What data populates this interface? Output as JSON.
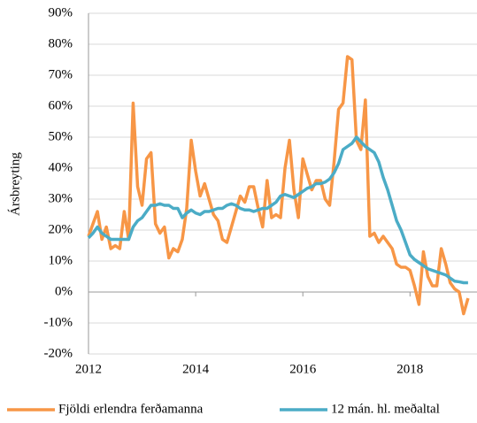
{
  "chart_data": {
    "type": "line",
    "ylabel": "Ársbreyting",
    "xlim": [
      2012,
      2019.25
    ],
    "xticks": [
      2012,
      2014,
      2016,
      2018
    ],
    "ylim": [
      -20,
      90
    ],
    "yticks": [
      {
        "value": -20,
        "label": "-20%"
      },
      {
        "value": -10,
        "label": "-10%"
      },
      {
        "value": 0,
        "label": "0%"
      },
      {
        "value": 10,
        "label": "10%"
      },
      {
        "value": 20,
        "label": "20%"
      },
      {
        "value": 30,
        "label": "30%"
      },
      {
        "value": 40,
        "label": "40%"
      },
      {
        "value": 50,
        "label": "50%"
      },
      {
        "value": 60,
        "label": "60%"
      },
      {
        "value": 70,
        "label": "70%"
      },
      {
        "value": 80,
        "label": "80%"
      },
      {
        "value": 90,
        "label": "90%"
      }
    ],
    "grid": true,
    "legend": "bottom",
    "x": [
      2012,
      2012.083,
      2012.167,
      2012.25,
      2012.333,
      2012.417,
      2012.5,
      2012.583,
      2012.667,
      2012.75,
      2012.833,
      2012.917,
      2013,
      2013.083,
      2013.167,
      2013.25,
      2013.333,
      2013.417,
      2013.5,
      2013.583,
      2013.667,
      2013.75,
      2013.833,
      2013.917,
      2014,
      2014.083,
      2014.167,
      2014.25,
      2014.333,
      2014.417,
      2014.5,
      2014.583,
      2014.667,
      2014.75,
      2014.833,
      2014.917,
      2015,
      2015.083,
      2015.167,
      2015.25,
      2015.333,
      2015.417,
      2015.5,
      2015.583,
      2015.667,
      2015.75,
      2015.833,
      2015.917,
      2016,
      2016.083,
      2016.167,
      2016.25,
      2016.333,
      2016.417,
      2016.5,
      2016.583,
      2016.667,
      2016.75,
      2016.833,
      2016.917,
      2017,
      2017.083,
      2017.167,
      2017.25,
      2017.333,
      2017.417,
      2017.5,
      2017.583,
      2017.667,
      2017.75,
      2017.833,
      2017.917,
      2018,
      2018.083,
      2018.167,
      2018.25,
      2018.333,
      2018.417,
      2018.5,
      2018.583,
      2018.667,
      2018.75,
      2018.833,
      2018.917,
      2019,
      2019.083
    ],
    "series": [
      {
        "name": "Fjöldi erlendra ferðamanna",
        "color": "#f79646",
        "values": [
          18,
          22,
          26,
          17,
          21,
          14,
          15,
          14,
          26,
          17,
          61,
          34,
          28,
          43,
          45,
          22,
          19,
          21,
          11,
          14,
          13,
          17,
          27,
          49,
          39,
          31,
          35,
          30,
          25,
          23,
          17,
          16,
          21,
          26,
          31,
          29,
          34,
          34,
          27,
          21,
          36,
          24,
          25,
          24,
          40,
          49,
          33,
          24,
          43,
          38,
          33,
          36,
          36,
          30,
          28,
          42,
          59,
          61,
          76,
          75,
          49,
          46,
          62,
          18,
          19,
          16,
          18,
          16,
          14,
          9,
          8,
          8,
          7,
          2,
          -4,
          13,
          5,
          2,
          2,
          14,
          9,
          3,
          1,
          0,
          -7,
          -2
        ]
      },
      {
        "name": "12 mán. hl. meðaltal",
        "color": "#4bacc6",
        "values": [
          17.5,
          19,
          21,
          19,
          18,
          17,
          17,
          17,
          17,
          17,
          21,
          23,
          24,
          26,
          28,
          28,
          28.5,
          28,
          28,
          27,
          27,
          24,
          25.5,
          26.5,
          25.5,
          25,
          26,
          26,
          26.5,
          27,
          27,
          28,
          28.5,
          28,
          27,
          26.5,
          26.5,
          26,
          26.5,
          27,
          27,
          28,
          29,
          31,
          31.5,
          31,
          30.5,
          31.5,
          32.5,
          33.5,
          34,
          35,
          35,
          35.5,
          36.5,
          38.5,
          41.5,
          46,
          47,
          48,
          50,
          48.5,
          47,
          46,
          45,
          42,
          37,
          33,
          28,
          23,
          20,
          16,
          12,
          10.5,
          9.5,
          8.5,
          7.5,
          7,
          6.5,
          6,
          5.5,
          4.5,
          3.5,
          3.3,
          3,
          3
        ]
      }
    ]
  }
}
